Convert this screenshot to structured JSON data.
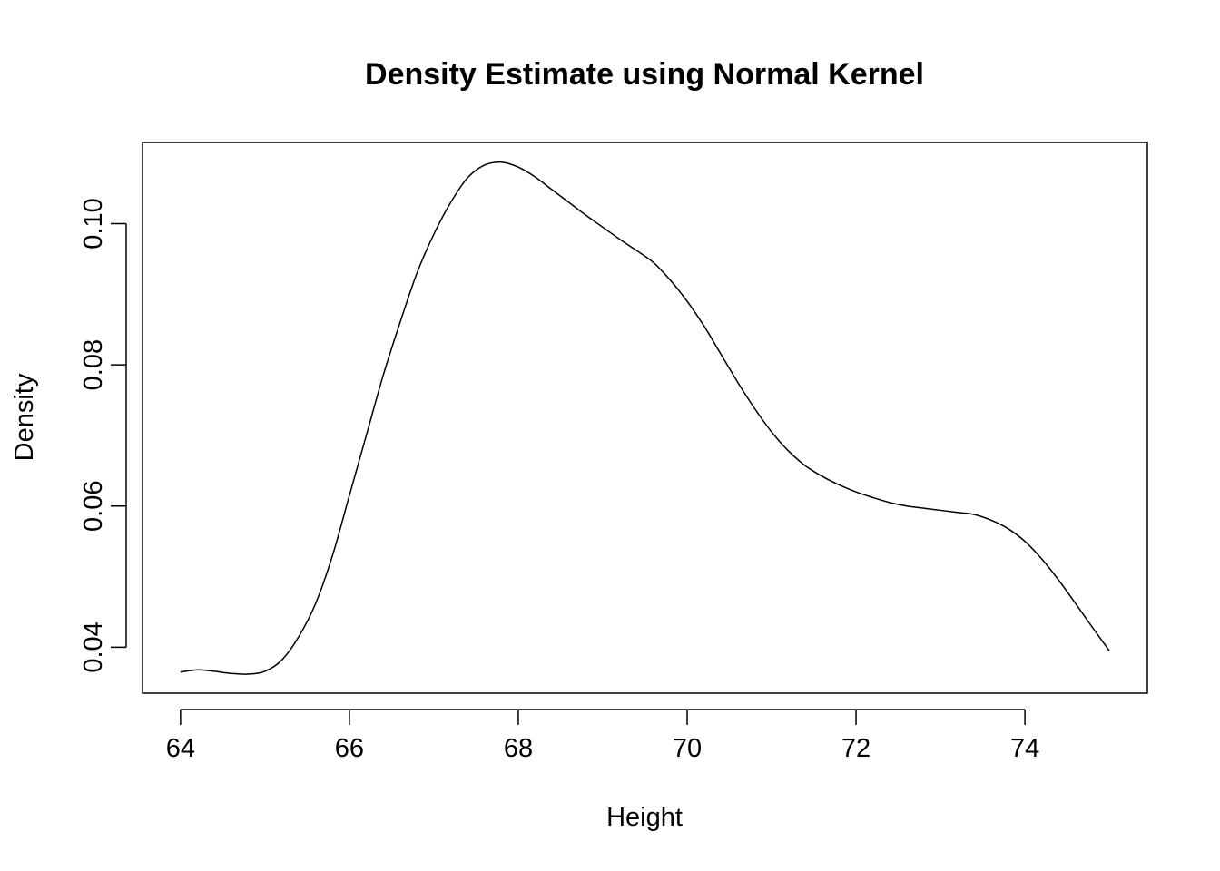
{
  "chart_data": {
    "type": "line",
    "title": "Density Estimate using Normal Kernel",
    "xlabel": "Height",
    "ylabel": "Density",
    "xlim": [
      63.55,
      75.45
    ],
    "ylim": [
      0.0335,
      0.1115
    ],
    "xticks": [
      64,
      66,
      68,
      70,
      72,
      74
    ],
    "xtick_labels": [
      "64",
      "66",
      "68",
      "70",
      "72",
      "74"
    ],
    "yticks": [
      0.04,
      0.06,
      0.08,
      0.1
    ],
    "ytick_labels": [
      "0.04",
      "0.06",
      "0.08",
      "0.10"
    ],
    "grid": false,
    "legend": "none",
    "series": [
      {
        "x": [
          64.0,
          64.2,
          64.4,
          64.6,
          64.8,
          65.0,
          65.2,
          65.4,
          65.6,
          65.8,
          66.0,
          66.2,
          66.4,
          66.6,
          66.8,
          67.0,
          67.2,
          67.4,
          67.6,
          67.8,
          68.0,
          68.2,
          68.4,
          68.6,
          68.8,
          69.0,
          69.2,
          69.4,
          69.6,
          69.8,
          70.0,
          70.2,
          70.4,
          70.6,
          70.8,
          71.0,
          71.2,
          71.4,
          71.6,
          71.8,
          72.0,
          72.2,
          72.4,
          72.6,
          72.8,
          73.0,
          73.2,
          73.4,
          73.6,
          73.8,
          74.0,
          74.2,
          74.4,
          74.6,
          74.8,
          75.0
        ],
        "y": [
          0.0365,
          0.0368,
          0.0366,
          0.0363,
          0.0362,
          0.0366,
          0.0382,
          0.0415,
          0.0462,
          0.053,
          0.0615,
          0.07,
          0.0785,
          0.086,
          0.093,
          0.0985,
          0.103,
          0.1065,
          0.1083,
          0.1087,
          0.108,
          0.1066,
          0.1048,
          0.103,
          0.1012,
          0.0995,
          0.0978,
          0.0962,
          0.0945,
          0.092,
          0.089,
          0.0855,
          0.0815,
          0.0775,
          0.0738,
          0.0705,
          0.0678,
          0.0657,
          0.0642,
          0.063,
          0.062,
          0.0612,
          0.0605,
          0.06,
          0.0597,
          0.0594,
          0.0591,
          0.0588,
          0.058,
          0.0568,
          0.055,
          0.0525,
          0.0495,
          0.0462,
          0.0428,
          0.0395
        ]
      }
    ]
  }
}
